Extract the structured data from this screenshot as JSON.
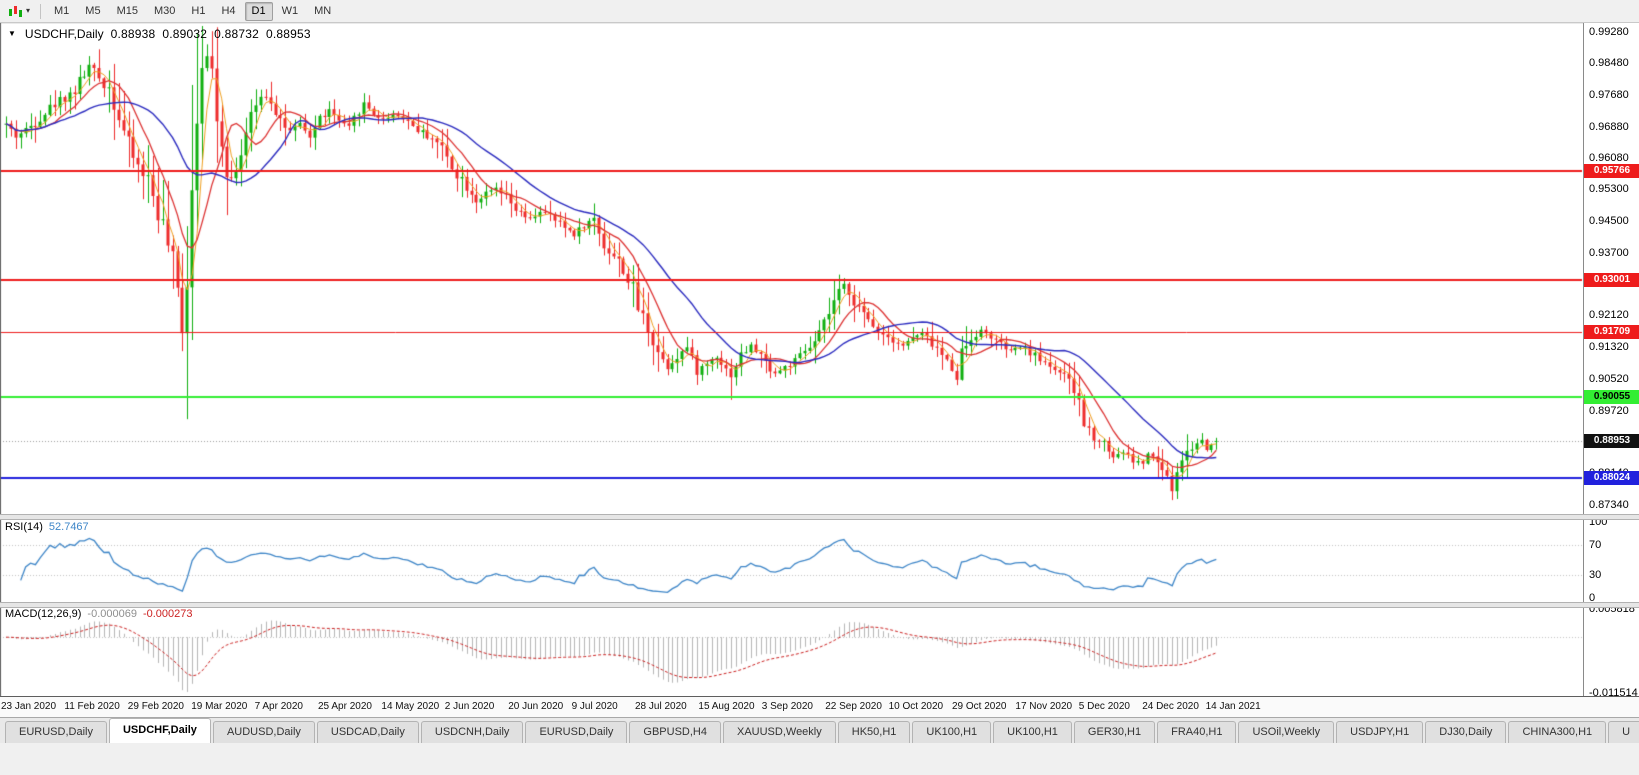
{
  "toolbar": {
    "timeframes": [
      "M1",
      "M5",
      "M15",
      "M30",
      "H1",
      "H4",
      "D1",
      "W1",
      "MN"
    ],
    "active_timeframe": "D1"
  },
  "chart": {
    "title": "USDCHF,Daily",
    "ohlc": {
      "open": "0.88938",
      "high": "0.89032",
      "low": "0.88732",
      "close": "0.88953"
    },
    "price_axis": [
      "0.99280",
      "0.98480",
      "0.97680",
      "0.96880",
      "0.96080",
      "0.95300",
      "0.94500",
      "0.93700",
      "0.92900",
      "0.92120",
      "0.91320",
      "0.90520",
      "0.89720",
      "0.88920",
      "0.88140",
      "0.87340"
    ],
    "hlines": [
      {
        "value": 0.95766,
        "label": "0.95766",
        "color": "#ee1c1c",
        "width": 2,
        "text_color": "#ffffff"
      },
      {
        "value": 0.93001,
        "label": "0.93001",
        "color": "#ee1c1c",
        "width": 2,
        "text_color": "#ffffff"
      },
      {
        "value": 0.91709,
        "label": "0.91709",
        "color": "#ee1c1c",
        "width": 1,
        "text_color": "#ffffff"
      },
      {
        "value": 0.90055,
        "label": "0.90055",
        "color": "#33ee33",
        "width": 2,
        "text_color": "#000000"
      },
      {
        "value": 0.88024,
        "label": "0.88024",
        "color": "#2121dd",
        "width": 2,
        "text_color": "#ffffff"
      }
    ],
    "current_price": {
      "value": 0.88953,
      "label": "0.88953",
      "badge_bg": "#111111",
      "badge_text": "#ffffff"
    }
  },
  "rsi": {
    "name": "RSI(14)",
    "value": "52.7467",
    "axis": [
      "100",
      "70",
      "30",
      "0"
    ],
    "levels": [
      70,
      30
    ]
  },
  "macd": {
    "name": "MACD(12,26,9)",
    "main_value": "-0.000069",
    "signal_value": "-0.000273",
    "axis_top": "0.005818",
    "axis_bottom": "-0.011514"
  },
  "time_axis": [
    "23 Jan 2020",
    "11 Feb 2020",
    "29 Feb 2020",
    "19 Mar 2020",
    "7 Apr 2020",
    "25 Apr 2020",
    "14 May 2020",
    "2 Jun 2020",
    "20 Jun 2020",
    "9 Jul 2020",
    "28 Jul 2020",
    "15 Aug 2020",
    "3 Sep 2020",
    "22 Sep 2020",
    "10 Oct 2020",
    "29 Oct 2020",
    "17 Nov 2020",
    "5 Dec 2020",
    "24 Dec 2020",
    "14 Jan 2021"
  ],
  "tabs": {
    "active_index": 1,
    "items": [
      "EURUSD,Daily",
      "USDCHF,Daily",
      "AUDUSD,Daily",
      "USDCAD,Daily",
      "USDCNH,Daily",
      "EURUSD,Daily",
      "GBPUSD,H4",
      "XAUUSD,Weekly",
      "HK50,H1",
      "UK100,H1",
      "UK100,H1",
      "GER30,H1",
      "FRA40,H1",
      "USOil,Weekly",
      "USDJPY,H1",
      "DJ30,Daily",
      "CHINA300,H1",
      "U"
    ]
  },
  "chart_data": {
    "type": "candlestick",
    "symbol": "USDCHF",
    "timeframe": "Daily",
    "bars": 248,
    "price_range": {
      "top": 0.9952,
      "bottom": 0.8711
    },
    "x_range_dates": [
      "23 Jan 2020",
      "25 Jan 2021"
    ],
    "horizontal_levels": [
      0.95766,
      0.93001,
      0.91709,
      0.90055,
      0.88024
    ],
    "last_bar_ohlc": {
      "open": 0.88938,
      "high": 0.89032,
      "low": 0.88732,
      "close": 0.88953
    },
    "close_anchors": [
      [
        0,
        0.9693
      ],
      [
        2,
        0.9665
      ],
      [
        4,
        0.9678
      ],
      [
        7,
        0.9714
      ],
      [
        10,
        0.9746
      ],
      [
        12,
        0.9763
      ],
      [
        14,
        0.978
      ],
      [
        17,
        0.9841
      ],
      [
        19,
        0.9812
      ],
      [
        21,
        0.9788
      ],
      [
        23,
        0.9718
      ],
      [
        25,
        0.9636
      ],
      [
        27,
        0.9589
      ],
      [
        29,
        0.9556
      ],
      [
        31,
        0.9478
      ],
      [
        33,
        0.939
      ],
      [
        35,
        0.9275
      ],
      [
        36,
        0.9196
      ],
      [
        37,
        0.933
      ],
      [
        38,
        0.9566
      ],
      [
        39,
        0.976
      ],
      [
        40,
        0.9882
      ],
      [
        41,
        0.9858
      ],
      [
        42,
        0.9826
      ],
      [
        43,
        0.9745
      ],
      [
        44,
        0.9658
      ],
      [
        45,
        0.959
      ],
      [
        46,
        0.9556
      ],
      [
        48,
        0.9622
      ],
      [
        50,
        0.9701
      ],
      [
        52,
        0.9772
      ],
      [
        54,
        0.9758
      ],
      [
        56,
        0.9706
      ],
      [
        58,
        0.9672
      ],
      [
        60,
        0.969
      ],
      [
        62,
        0.9662
      ],
      [
        64,
        0.9708
      ],
      [
        66,
        0.9729
      ],
      [
        68,
        0.9701
      ],
      [
        70,
        0.9682
      ],
      [
        72,
        0.9731
      ],
      [
        73,
        0.9746
      ],
      [
        75,
        0.9722
      ],
      [
        77,
        0.9706
      ],
      [
        79,
        0.9719
      ],
      [
        81,
        0.9713
      ],
      [
        83,
        0.9691
      ],
      [
        85,
        0.9672
      ],
      [
        87,
        0.9661
      ],
      [
        89,
        0.9633
      ],
      [
        90,
        0.9611
      ],
      [
        92,
        0.9571
      ],
      [
        94,
        0.9541
      ],
      [
        96,
        0.9502
      ],
      [
        98,
        0.9516
      ],
      [
        100,
        0.9531
      ],
      [
        102,
        0.9506
      ],
      [
        103,
        0.9491
      ],
      [
        105,
        0.9466
      ],
      [
        107,
        0.9452
      ],
      [
        109,
        0.9476
      ],
      [
        111,
        0.9461
      ],
      [
        113,
        0.9442
      ],
      [
        115,
        0.9426
      ],
      [
        116,
        0.9416
      ],
      [
        118,
        0.9441
      ],
      [
        120,
        0.9455
      ],
      [
        122,
        0.9391
      ],
      [
        124,
        0.9361
      ],
      [
        126,
        0.9331
      ],
      [
        128,
        0.9272
      ],
      [
        129,
        0.9232
      ],
      [
        131,
        0.9181
      ],
      [
        133,
        0.9122
      ],
      [
        135,
        0.9081
      ],
      [
        137,
        0.9111
      ],
      [
        139,
        0.9131
      ],
      [
        141,
        0.9072
      ],
      [
        143,
        0.9091
      ],
      [
        145,
        0.9111
      ],
      [
        147,
        0.9076
      ],
      [
        148,
        0.9061
      ],
      [
        150,
        0.9111
      ],
      [
        152,
        0.9136
      ],
      [
        154,
        0.9111
      ],
      [
        155,
        0.9091
      ],
      [
        157,
        0.9066
      ],
      [
        159,
        0.9081
      ],
      [
        161,
        0.9096
      ],
      [
        163,
        0.9121
      ],
      [
        165,
        0.9141
      ],
      [
        167,
        0.9186
      ],
      [
        169,
        0.9246
      ],
      [
        171,
        0.9289
      ],
      [
        173,
        0.9251
      ],
      [
        175,
        0.9211
      ],
      [
        177,
        0.9186
      ],
      [
        179,
        0.9166
      ],
      [
        181,
        0.9151
      ],
      [
        183,
        0.9136
      ],
      [
        185,
        0.9156
      ],
      [
        187,
        0.9166
      ],
      [
        189,
        0.9141
      ],
      [
        191,
        0.9111
      ],
      [
        193,
        0.9076
      ],
      [
        194,
        0.9059
      ],
      [
        195,
        0.9121
      ],
      [
        197,
        0.9156
      ],
      [
        199,
        0.9173
      ],
      [
        201,
        0.9159
      ],
      [
        203,
        0.9136
      ],
      [
        205,
        0.9121
      ],
      [
        207,
        0.9133
      ],
      [
        209,
        0.9119
      ],
      [
        211,
        0.9101
      ],
      [
        213,
        0.9086
      ],
      [
        215,
        0.9069
      ],
      [
        217,
        0.9041
      ],
      [
        219,
        0.8996
      ],
      [
        220,
        0.8936
      ],
      [
        222,
        0.8906
      ],
      [
        224,
        0.8891
      ],
      [
        226,
        0.8856
      ],
      [
        228,
        0.8869
      ],
      [
        230,
        0.8846
      ],
      [
        232,
        0.8839
      ],
      [
        233,
        0.8863
      ],
      [
        235,
        0.8841
      ],
      [
        237,
        0.8801
      ],
      [
        238,
        0.8773
      ],
      [
        239,
        0.8811
      ],
      [
        240,
        0.8853
      ],
      [
        242,
        0.8879
      ],
      [
        244,
        0.8899
      ],
      [
        245,
        0.8873
      ],
      [
        246,
        0.8889
      ],
      [
        247,
        0.88953
      ]
    ],
    "wick_extremes": {
      "highs": [
        [
          17,
          0.9847
        ],
        [
          40,
          0.9921
        ],
        [
          171,
          0.9296
        ]
      ],
      "lows": [
        [
          36,
          0.9182
        ],
        [
          148,
          0.8999
        ],
        [
          194,
          0.9036
        ],
        [
          238,
          0.8746
        ]
      ]
    },
    "moving_averages": [
      {
        "name": "fast",
        "period": 4,
        "color": "#f0a020",
        "width": 1
      },
      {
        "name": "medium",
        "period": 9,
        "color": "#dd3333",
        "width": 1.3
      },
      {
        "name": "slow",
        "period": 22,
        "color": "#2c2cc0",
        "width": 1.4
      }
    ],
    "indicators": {
      "rsi": {
        "period": 14,
        "current": 52.7467,
        "levels": [
          70,
          30
        ],
        "color": "#3e86c8"
      },
      "macd": {
        "fast": 12,
        "slow": 26,
        "signal": 9,
        "current_main": -6.9e-05,
        "current_signal": -0.000273,
        "scale_max": 0.005818,
        "scale_min": -0.011514,
        "hist_color": "#b6b6b6",
        "signal_color": "#cc2222"
      }
    },
    "style": {
      "bull": "#0faf0f",
      "bear": "#ee2c2c",
      "background": "#ffffff",
      "level_dotted": "#c2c2c2",
      "current_price_line": "#9a9a9a"
    }
  }
}
